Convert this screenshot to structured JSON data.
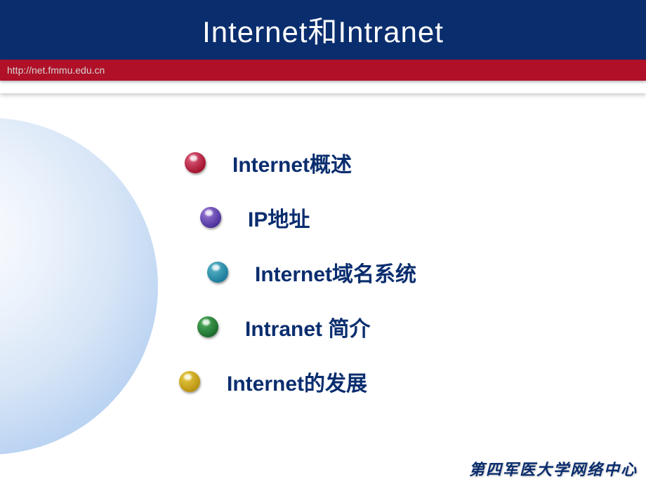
{
  "title": "Internet和Intranet",
  "url": "http://net.fmmu.edu.cn",
  "bullets": [
    {
      "label": "Internet概述",
      "color_inner": "#e06080",
      "color_outer": "#a0102a",
      "indent": 68
    },
    {
      "label": "IP地址",
      "color_inner": "#9a7ad8",
      "color_outer": "#4a2e99",
      "indent": 90
    },
    {
      "label": "Internet域名系统",
      "color_inner": "#5ab8c8",
      "color_outer": "#1a7a99",
      "indent": 100
    },
    {
      "label": "Intranet 简介",
      "color_inner": "#50b060",
      "color_outer": "#1a6a2a",
      "indent": 86
    },
    {
      "label": "Internet的发展",
      "color_inner": "#e8cc40",
      "color_outer": "#b89010",
      "indent": 60
    }
  ],
  "bullet_gap": 38,
  "bullet_fontsize": 30,
  "title_fontsize": 42,
  "footer": "第四军医大学网络中心",
  "colors": {
    "title_bg": "#0a2d6e",
    "url_bg": "#b01128",
    "text": "#0a2d6e",
    "url_text": "#d4d4d4"
  }
}
